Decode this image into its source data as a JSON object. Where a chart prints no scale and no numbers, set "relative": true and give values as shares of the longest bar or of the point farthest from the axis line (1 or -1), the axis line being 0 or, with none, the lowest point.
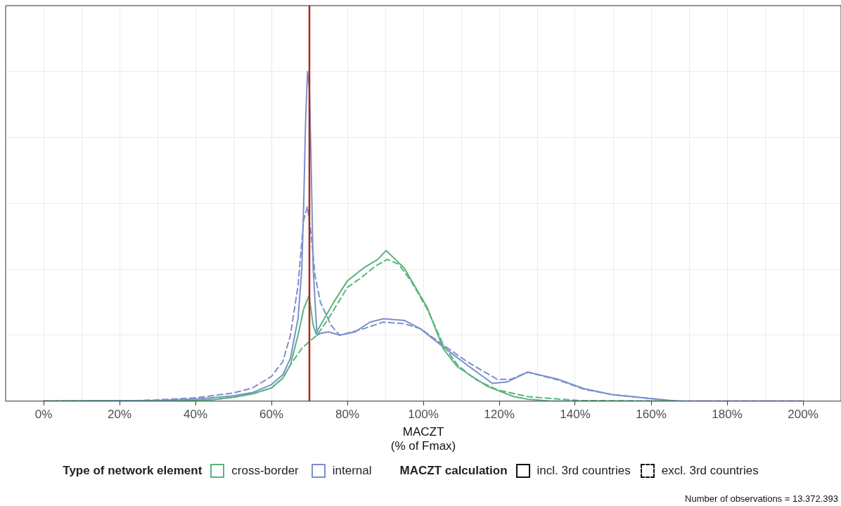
{
  "chart_data": {
    "type": "line",
    "xlabel": "MACZT\n(% of Fmax)",
    "legend_title": "Type of network element",
    "relative": true,
    "grid": true,
    "legend": "bottom",
    "xlim": [
      -10,
      210
    ],
    "xticks": [
      {
        "value": 0,
        "label": "0%"
      },
      {
        "value": 10,
        "label": null
      },
      {
        "value": 20,
        "label": "20%"
      },
      {
        "value": 30,
        "label": null
      },
      {
        "value": 40,
        "label": "40%"
      },
      {
        "value": 50,
        "label": null
      },
      {
        "value": 60,
        "label": "60%"
      },
      {
        "value": 70,
        "label": null
      },
      {
        "value": 80,
        "label": "80%"
      },
      {
        "value": 90,
        "label": null
      },
      {
        "value": 100,
        "label": "100%"
      },
      {
        "value": 110,
        "label": null
      },
      {
        "value": 120,
        "label": "120%"
      },
      {
        "value": 130,
        "label": null
      },
      {
        "value": 140,
        "label": "140%"
      },
      {
        "value": 150,
        "label": null
      },
      {
        "value": 160,
        "label": "160%"
      },
      {
        "value": 170,
        "label": null
      },
      {
        "value": 180,
        "label": "180%"
      },
      {
        "value": 190,
        "label": null
      },
      {
        "value": 200,
        "label": "200%"
      }
    ],
    "ref_lines": [
      {
        "axis": "x",
        "value": 70,
        "color": "#a52a1a",
        "line_style": "solid"
      }
    ],
    "annotations": [
      "MACZT calculation",
      "incl. 3rd countries",
      "excl. 3rd countries",
      "Number of observations =  13.372.393"
    ],
    "series": [
      {
        "name": "cross-border",
        "color": "#5ab47f",
        "line_style": "solid",
        "x": [
          0,
          35,
          45,
          50,
          55,
          60,
          63,
          65,
          67,
          68.5,
          69.9,
          71,
          71.7,
          76.4,
          80,
          84.4,
          88,
          90.2,
          94.9,
          101,
          105.3,
          109,
          117,
          123.8,
          127.5,
          133.7,
          167
        ],
        "values": [
          0,
          0,
          0.005,
          0.012,
          0.022,
          0.04,
          0.07,
          0.11,
          0.2,
          0.28,
          0.32,
          0.23,
          0.206,
          0.3,
          0.365,
          0.405,
          0.43,
          0.457,
          0.405,
          0.285,
          0.158,
          0.104,
          0.044,
          0.014,
          0.006,
          0,
          0
        ]
      },
      {
        "color": "#5ab47f",
        "line_style": "dashed",
        "x": [
          0,
          35,
          45,
          50,
          55,
          60,
          63,
          65,
          68,
          69.9,
          72,
          75,
          80,
          83.7,
          87.4,
          90.5,
          93.6,
          97,
          101,
          105.3,
          109,
          113.4,
          119.5,
          127.5,
          133.8,
          141,
          167
        ],
        "values": [
          0,
          0,
          0.005,
          0.012,
          0.022,
          0.04,
          0.07,
          0.11,
          0.16,
          0.18,
          0.2,
          0.25,
          0.345,
          0.375,
          0.41,
          0.43,
          0.415,
          0.36,
          0.28,
          0.17,
          0.11,
          0.068,
          0.034,
          0.014,
          0.008,
          0.002,
          0
        ]
      },
      {
        "name": "internal",
        "color": "#7b8fcb",
        "line_style": "solid",
        "x": [
          0,
          30,
          40,
          50,
          55,
          60,
          63,
          65,
          67,
          68,
          68.5,
          69,
          69.5,
          70,
          70.5,
          71,
          72,
          73,
          75,
          78,
          82,
          86,
          89.5,
          95,
          99.2,
          105.3,
          111.5,
          118.2,
          122,
          127.5,
          135.6,
          142.3,
          149.7,
          159.7,
          167,
          200
        ],
        "values": [
          0,
          0.002,
          0.006,
          0.016,
          0.026,
          0.05,
          0.08,
          0.13,
          0.25,
          0.4,
          0.6,
          0.85,
          1,
          0.95,
          0.7,
          0.4,
          0.2,
          0.206,
          0.21,
          0.2,
          0.21,
          0.24,
          0.25,
          0.245,
          0.22,
          0.164,
          0.11,
          0.054,
          0.058,
          0.088,
          0.066,
          0.038,
          0.02,
          0.008,
          0,
          0
        ]
      },
      {
        "color": "#7b8fcb",
        "line_style": "dashed",
        "x": [
          0,
          25,
          30,
          40,
          50,
          55,
          60,
          63,
          65,
          67,
          68.5,
          69.5,
          70.5,
          71.5,
          72.9,
          75.7,
          78,
          84.4,
          89.4,
          95,
          99.2,
          105.3,
          111.5,
          119.5,
          123,
          127.5,
          135.6,
          142.3,
          149.7,
          159.7,
          167,
          200
        ],
        "values": [
          0,
          0.002,
          0.004,
          0.01,
          0.025,
          0.04,
          0.075,
          0.12,
          0.2,
          0.35,
          0.55,
          0.59,
          0.5,
          0.38,
          0.3,
          0.23,
          0.2,
          0.22,
          0.24,
          0.235,
          0.22,
          0.17,
          0.12,
          0.066,
          0.066,
          0.088,
          0.064,
          0.036,
          0.02,
          0.008,
          0,
          0
        ]
      }
    ]
  }
}
